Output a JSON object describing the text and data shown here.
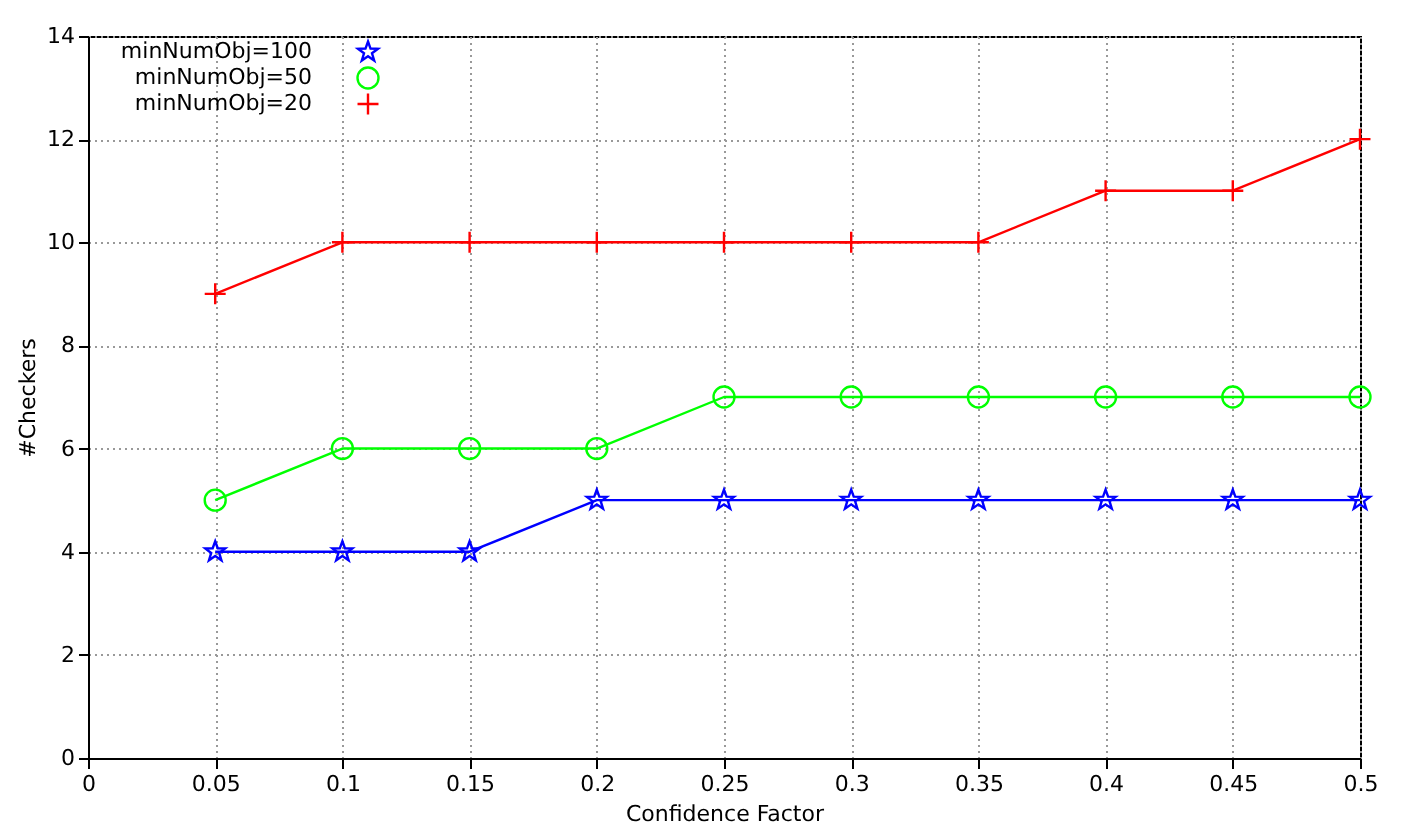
{
  "chart_data": {
    "type": "line",
    "xlabel": "Confidence Factor",
    "ylabel": "#Checkers",
    "x": [
      0.05,
      0.1,
      0.15,
      0.2,
      0.25,
      0.3,
      0.35,
      0.4,
      0.45,
      0.5
    ],
    "series": [
      {
        "name": "minNumObj=100",
        "color": "#0000ff",
        "marker": "star",
        "values": [
          4,
          4,
          4,
          5,
          5,
          5,
          5,
          5,
          5,
          5
        ]
      },
      {
        "name": "minNumObj=50",
        "color": "#00ff00",
        "marker": "circle",
        "values": [
          5,
          6,
          6,
          6,
          7,
          7,
          7,
          7,
          7,
          7
        ]
      },
      {
        "name": "minNumObj=20",
        "color": "#ff0000",
        "marker": "cross",
        "values": [
          9,
          10,
          10,
          10,
          10,
          10,
          10,
          11,
          11,
          12
        ]
      }
    ],
    "xlim": [
      0,
      0.5
    ],
    "xticks": [
      0,
      0.05,
      0.1,
      0.15,
      0.2,
      0.25,
      0.3,
      0.35,
      0.4,
      0.45,
      0.5
    ],
    "ylim": [
      0,
      14
    ],
    "yticks": [
      0,
      2,
      4,
      6,
      8,
      10,
      12,
      14
    ],
    "grid": true,
    "legend": "top left",
    "line_style": "solid"
  }
}
